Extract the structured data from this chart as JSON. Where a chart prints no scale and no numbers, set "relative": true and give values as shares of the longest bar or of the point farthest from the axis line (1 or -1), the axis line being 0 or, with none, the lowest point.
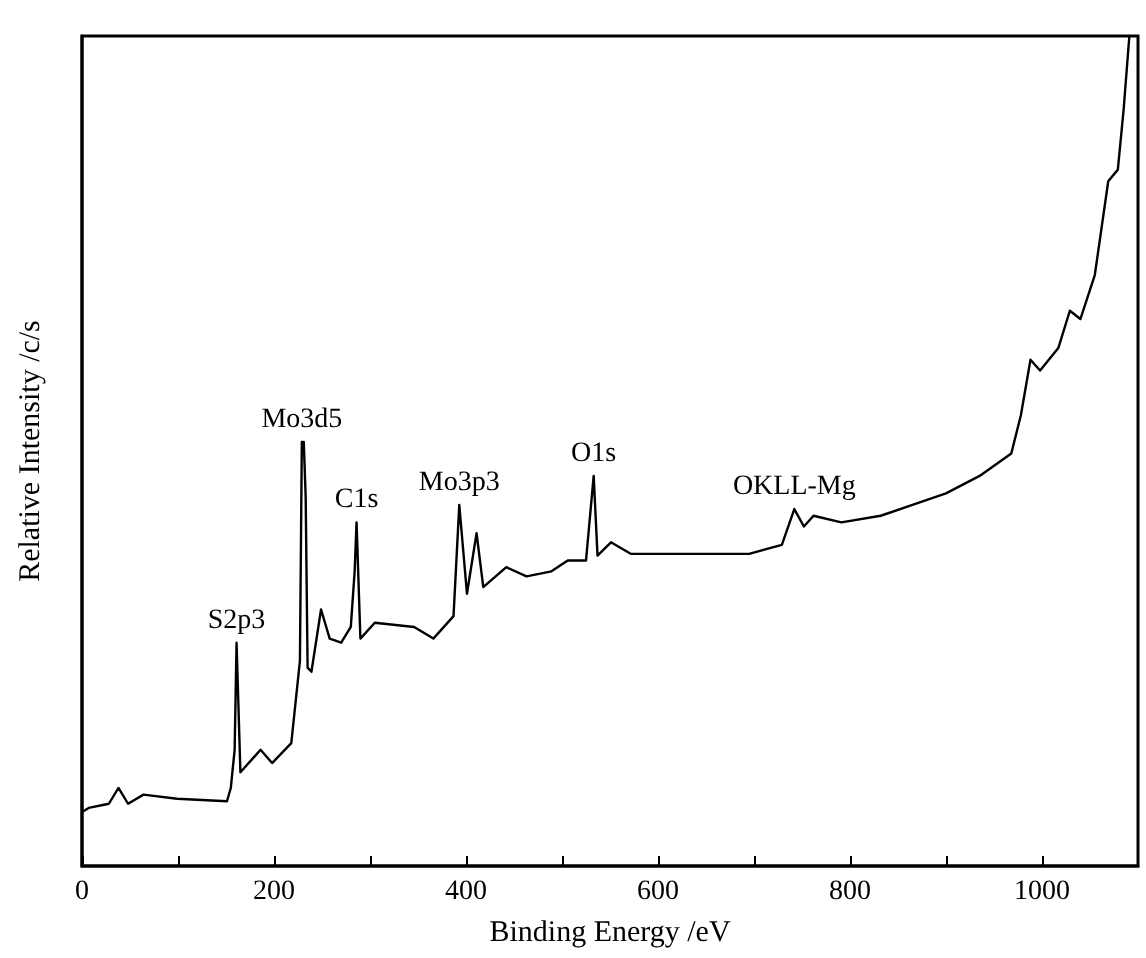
{
  "chart_data": {
    "type": "line",
    "relative": true,
    "xlabel": "Binding Energy /eV",
    "ylabel": "Relative Intensity /c/s",
    "xlim": [
      0,
      1100
    ],
    "xticks": [
      0,
      {
        "value": 100,
        "label": null
      },
      200,
      {
        "value": 300,
        "label": null
      },
      400,
      {
        "value": 500,
        "label": null
      },
      600,
      {
        "value": 700,
        "label": null
      },
      800,
      {
        "value": 900,
        "label": null
      },
      1000
    ],
    "tick_labels": "x",
    "grid": false,
    "marker": "none",
    "line_style": "solid",
    "x": [
      0,
      7,
      28,
      38,
      48,
      64,
      99,
      151,
      155,
      159,
      161,
      165,
      186,
      198,
      218,
      227,
      229,
      231,
      233,
      235,
      239,
      249,
      258,
      270,
      280,
      284,
      286,
      290,
      305,
      346,
      366,
      387,
      393,
      401,
      411,
      418,
      442,
      463,
      489,
      506,
      525,
      533,
      537,
      551,
      572,
      633,
      695,
      729,
      742,
      752,
      762,
      791,
      832,
      865,
      900,
      935,
      968,
      978,
      988,
      998,
      1017,
      1029,
      1040,
      1055,
      1069,
      1079,
      1085,
      1091
    ],
    "series": [
      {
        "color": "#000000",
        "values": [
          0.065,
          0.07,
          0.075,
          0.094,
          0.075,
          0.086,
          0.081,
          0.078,
          0.094,
          0.14,
          0.269,
          0.113,
          0.14,
          0.124,
          0.148,
          0.247,
          0.511,
          0.511,
          0.444,
          0.239,
          0.234,
          0.309,
          0.274,
          0.269,
          0.288,
          0.355,
          0.414,
          0.274,
          0.293,
          0.288,
          0.274,
          0.301,
          0.435,
          0.328,
          0.401,
          0.336,
          0.36,
          0.349,
          0.355,
          0.368,
          0.368,
          0.47,
          0.374,
          0.39,
          0.376,
          0.376,
          0.376,
          0.387,
          0.43,
          0.409,
          0.422,
          0.414,
          0.422,
          0.435,
          0.449,
          0.47,
          0.497,
          0.543,
          0.61,
          0.597,
          0.624,
          0.669,
          0.659,
          0.712,
          0.825,
          0.839,
          0.911,
          1
        ]
      }
    ],
    "annotations": [
      {
        "text": "S2p3",
        "x": 161,
        "y": 0.269
      },
      {
        "text": "Mo3d5",
        "x": 229,
        "y": 0.511
      },
      {
        "text": "C1s",
        "x": 286,
        "y": 0.414
      },
      {
        "text": "Mo3p3",
        "x": 393,
        "y": 0.435
      },
      {
        "text": "O1s",
        "x": 533,
        "y": 0.47
      },
      {
        "text": "OKLL-Mg",
        "x": 742,
        "y": 0.43
      }
    ]
  }
}
